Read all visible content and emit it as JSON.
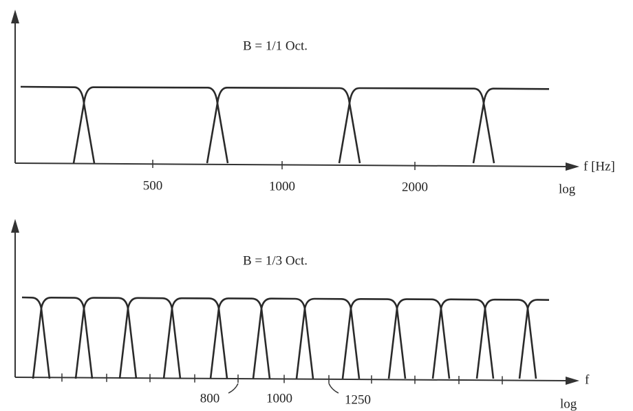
{
  "panels": [
    {
      "title": "B = 1/1 Oct.",
      "axis_label": "f [Hz]",
      "scale_label": "log",
      "tick_labels": [
        "500",
        "1000",
        "2000"
      ]
    },
    {
      "title": "B = 1/3 Oct.",
      "axis_label": "f",
      "scale_label": "log",
      "tick_labels": [
        "800",
        "1000",
        "1250"
      ]
    }
  ]
}
